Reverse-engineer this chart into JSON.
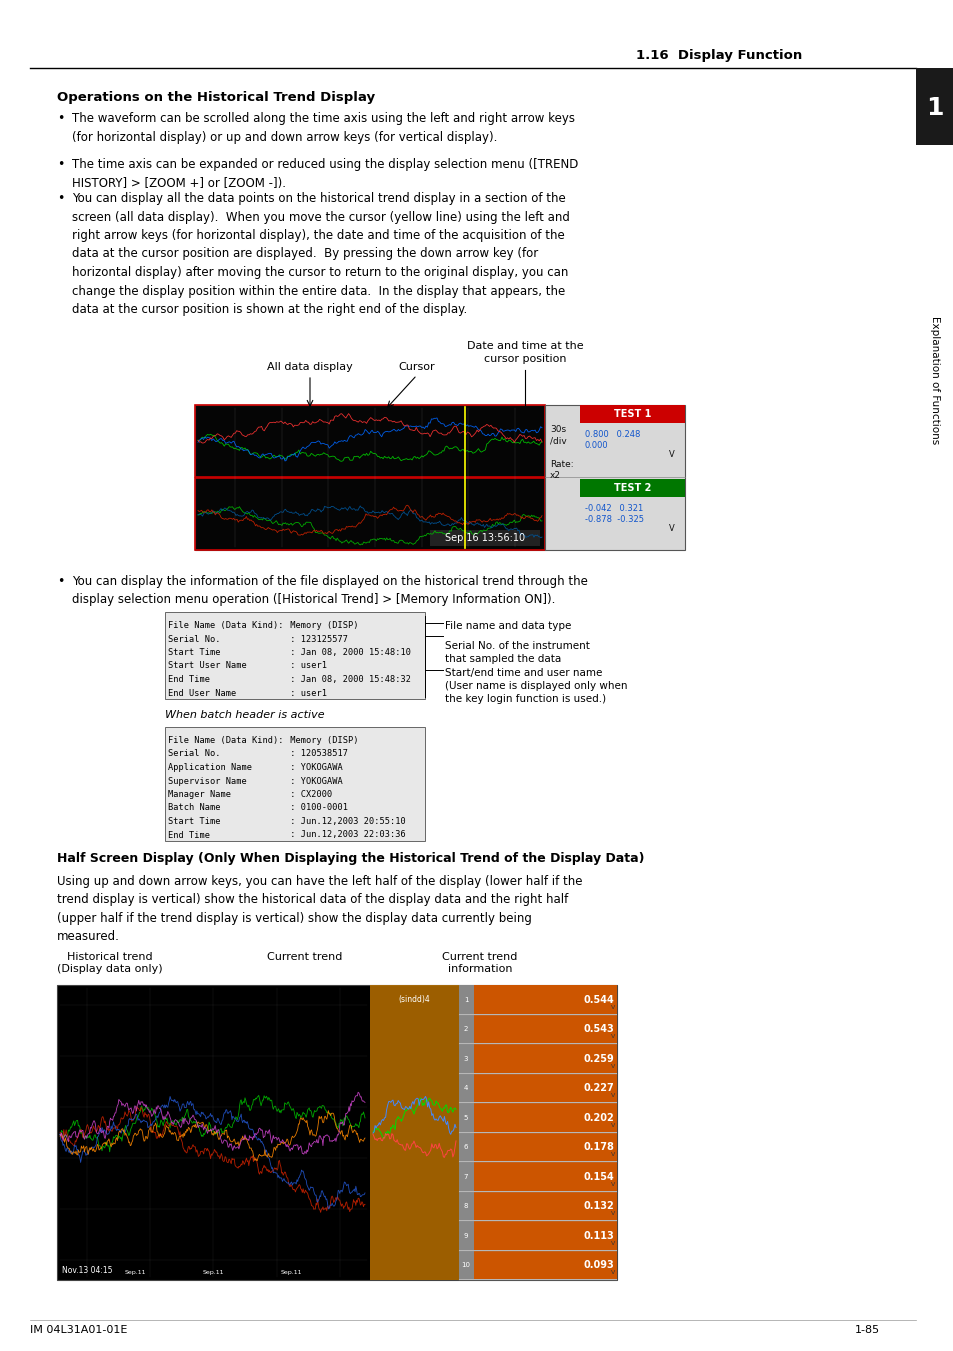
{
  "page_title": "1.16  Display Function",
  "chapter_tab": "1",
  "chapter_tab_text": "Explanation of Functions",
  "section_heading": "Operations on the Historical Trend Display",
  "bullet1": "The waveform can be scrolled along the time axis using the left and right arrow keys\n(for horizontal display) or up and down arrow keys (for vertical display).",
  "bullet2": "The time axis can be expanded or reduced using the display selection menu ([TREND\nHISTORY] > [ZOOM +] or [ZOOM -]).",
  "bullet3": "You can display all the data points on the historical trend display in a section of the\nscreen (all data display).  When you move the cursor (yellow line) using the left and\nright arrow keys (for horizontal display), the date and time of the acquisition of the\ndata at the cursor position are displayed.  By pressing the down arrow key (for\nhorizontal display) after moving the cursor to return to the original display, you can\nchange the display position within the entire data.  In the display that appears, the\ndata at the cursor position is shown at the right end of the display.",
  "fig1_all_data_label": "All data display",
  "fig1_cursor_label": "Cursor",
  "fig1_date_label": "Date and time at the\ncursor position",
  "bullet4": "You can display the information of the file displayed on the historical trend through the\ndisplay selection menu operation ([Historical Trend] > [Memory Information ON]).",
  "info_rows_normal": [
    [
      "File Name (Data Kind):",
      " Memory (DISP)"
    ],
    [
      "Serial No.",
      " : 123125577"
    ],
    [
      "Start Time",
      " : Jan 08, 2000 15:48:10"
    ],
    [
      "Start User Name",
      " : user1"
    ],
    [
      "End Time",
      " : Jan 08, 2000 15:48:32"
    ],
    [
      "End User Name",
      " : user1"
    ]
  ],
  "info_labels": [
    "File name and data type",
    "Serial No. of the instrument\nthat sampled the data",
    "Start/end time and user name\n(User name is displayed only when\nthe key login function is used.)"
  ],
  "batch_header": "When batch header is active",
  "info_rows_batch": [
    [
      "File Name (Data Kind):",
      " Memory (DISP)"
    ],
    [
      "Serial No.",
      " : 120538517"
    ],
    [
      "Application Name",
      " : YOKOGAWA"
    ],
    [
      "Supervisor Name",
      " : YOKOGAWA"
    ],
    [
      "Manager Name",
      " : CX2000"
    ],
    [
      "Batch Name",
      " : 0100-0001"
    ],
    [
      "Start Time",
      " : Jun.12,2003 20:55:10"
    ],
    [
      "End Time",
      " : Jun.12,2003 22:03:36"
    ]
  ],
  "half_heading": "Half Screen Display (Only When Displaying the Historical Trend of the Display Data)",
  "half_text": "Using up and down arrow keys, you can have the left half of the display (lower half if the\ntrend display is vertical) show the historical data of the display data and the right half\n(upper half if the trend display is vertical) show the display data currently being\nmeasured.",
  "fig2_hist_label": "Historical trend\n(Display data only)",
  "fig2_curr_label": "Current trend",
  "fig2_info_label": "Current trend\ninformation",
  "fig2_values": [
    "0.544",
    "0.543",
    "0.259",
    "0.227",
    "0.202",
    "0.178",
    "0.154",
    "0.132",
    "0.113",
    "0.093"
  ],
  "footer_left": "IM 04L31A01-01E",
  "footer_right": "1-85"
}
